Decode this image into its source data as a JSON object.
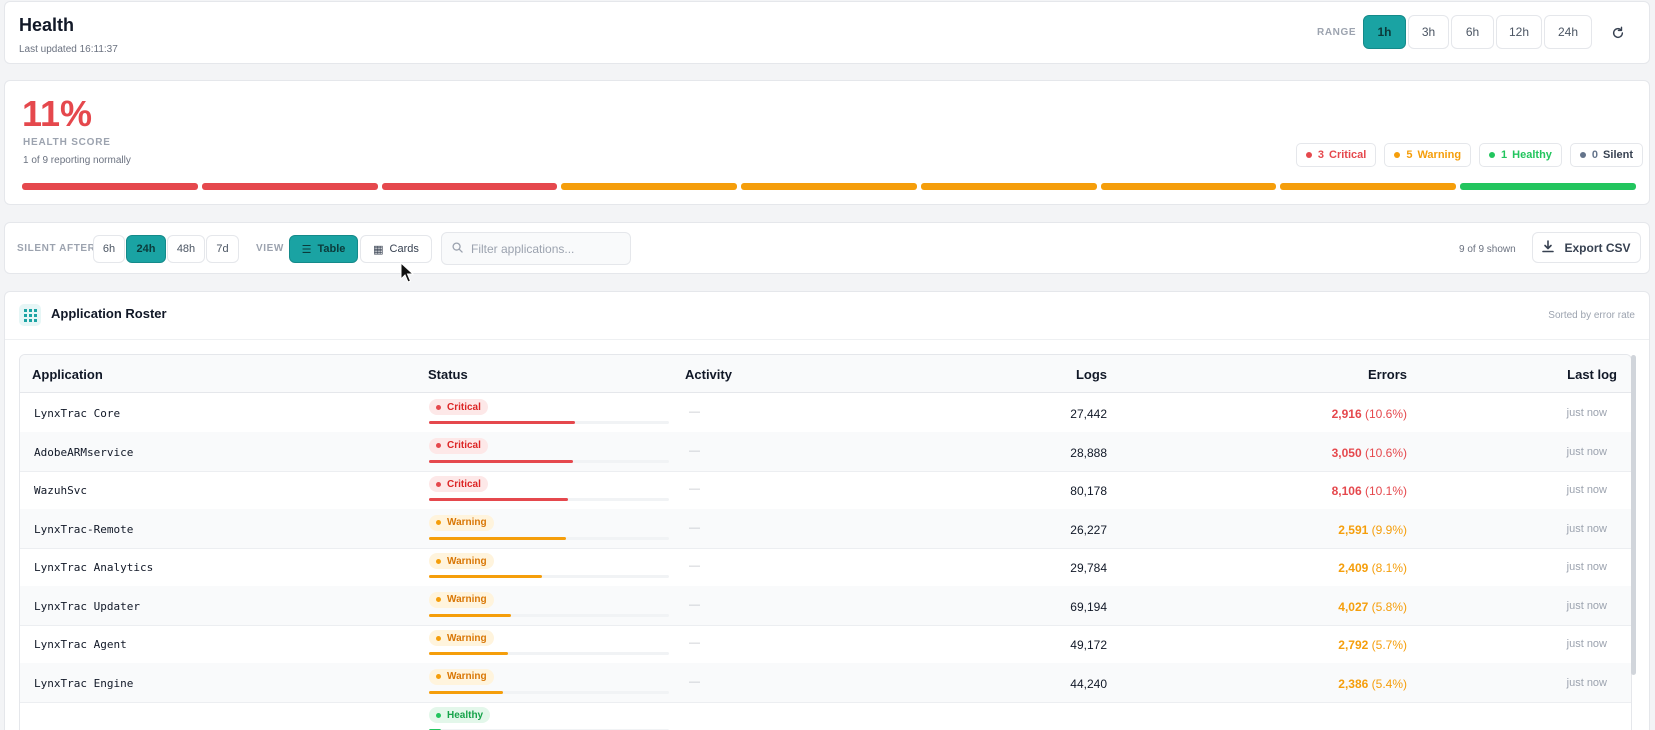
{
  "header": {
    "title": "Health",
    "updated": "Last updated 16:11:37",
    "range_label": "RANGE",
    "ranges": [
      {
        "label": "1h",
        "active": true
      },
      {
        "label": "3h",
        "active": false
      },
      {
        "label": "6h",
        "active": false
      },
      {
        "label": "12h",
        "active": false
      },
      {
        "label": "24h",
        "active": false
      }
    ],
    "refresh_icon": "refresh-icon"
  },
  "score": {
    "value": "11%",
    "label": "HEALTH SCORE",
    "subtitle": "1 of 9 reporting normally",
    "counts": [
      {
        "num": "3",
        "label": "Critical",
        "color": "#e5484d"
      },
      {
        "num": "5",
        "label": "Warning",
        "color": "#f59e0b"
      },
      {
        "num": "1",
        "label": "Healthy",
        "color": "#22c55e"
      },
      {
        "num": "0",
        "label": "Silent",
        "color": "#64748b"
      }
    ],
    "segments": [
      "critical",
      "critical",
      "critical",
      "warning",
      "warning",
      "warning",
      "warning",
      "warning",
      "healthy"
    ]
  },
  "toolbar": {
    "silent_label": "SILENT AFTER",
    "silent_options": [
      {
        "label": "6h",
        "active": false
      },
      {
        "label": "24h",
        "active": true
      },
      {
        "label": "48h",
        "active": false
      },
      {
        "label": "7d",
        "active": false
      }
    ],
    "view_label": "VIEW",
    "views": [
      {
        "label": "Table",
        "active": true,
        "icon": "list-icon"
      },
      {
        "label": "Cards",
        "active": false,
        "icon": "grid-icon"
      }
    ],
    "filter_placeholder": "Filter applications...",
    "shown": "9 of 9 shown",
    "export_label": "Export CSV"
  },
  "roster": {
    "title": "Application Roster",
    "sorted": "Sorted by error rate",
    "columns": [
      "Application",
      "Status",
      "Activity",
      "Logs",
      "Errors",
      "Last log"
    ],
    "rows": [
      {
        "app": "LynxTrac Core",
        "status": "Critical",
        "level": 0.61,
        "activity": "—",
        "logs": "27,442",
        "errors": "2,916",
        "pct": "(10.6%)",
        "last": "just now"
      },
      {
        "app": "AdobeARMservice",
        "status": "Critical",
        "level": 0.6,
        "activity": "—",
        "logs": "28,888",
        "errors": "3,050",
        "pct": "(10.6%)",
        "last": "just now"
      },
      {
        "app": "WazuhSvc",
        "status": "Critical",
        "level": 0.58,
        "activity": "—",
        "logs": "80,178",
        "errors": "8,106",
        "pct": "(10.1%)",
        "last": "just now"
      },
      {
        "app": "LynxTrac-Remote",
        "status": "Warning",
        "level": 0.57,
        "activity": "—",
        "logs": "26,227",
        "errors": "2,591",
        "pct": "(9.9%)",
        "last": "just now"
      },
      {
        "app": "LynxTrac Analytics",
        "status": "Warning",
        "level": 0.47,
        "activity": "—",
        "logs": "29,784",
        "errors": "2,409",
        "pct": "(8.1%)",
        "last": "just now"
      },
      {
        "app": "LynxTrac Updater",
        "status": "Warning",
        "level": 0.34,
        "activity": "—",
        "logs": "69,194",
        "errors": "4,027",
        "pct": "(5.8%)",
        "last": "just now"
      },
      {
        "app": "LynxTrac Agent",
        "status": "Warning",
        "level": 0.33,
        "activity": "—",
        "logs": "49,172",
        "errors": "2,792",
        "pct": "(5.7%)",
        "last": "just now"
      },
      {
        "app": "LynxTrac Engine",
        "status": "Warning",
        "level": 0.31,
        "activity": "—",
        "logs": "44,240",
        "errors": "2,386",
        "pct": "(5.4%)",
        "last": "just now"
      },
      {
        "app": "",
        "status": "Healthy",
        "level": 0.05,
        "activity": "",
        "logs": "",
        "errors": "",
        "pct": "",
        "last": ""
      }
    ]
  },
  "colors": {
    "critical": "#e5484d",
    "warning": "#f59e0b",
    "healthy": "#22c55e",
    "accent": "#1aa3a3"
  }
}
